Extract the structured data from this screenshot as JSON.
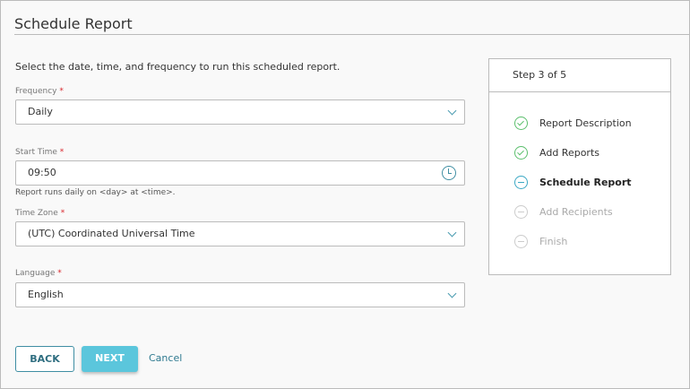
{
  "title": "Schedule Report",
  "intro": "Select the date, time, and frequency to run this scheduled report.",
  "required_mark": "*",
  "fields": {
    "frequency": {
      "label": "Frequency",
      "value": "Daily"
    },
    "start_time": {
      "label": "Start Time",
      "value": "09:50",
      "hint": "Report runs daily on <day> at <time>."
    },
    "time_zone": {
      "label": "Time Zone",
      "value": "(UTC) Coordinated Universal Time"
    },
    "language": {
      "label": "Language",
      "value": "English"
    }
  },
  "steps": {
    "header": "Step 3 of 5",
    "items": [
      {
        "label": "Report Description",
        "status": "complete"
      },
      {
        "label": "Add Reports",
        "status": "complete"
      },
      {
        "label": "Schedule Report",
        "status": "current"
      },
      {
        "label": "Add Recipients",
        "status": "pending"
      },
      {
        "label": "Finish",
        "status": "pending"
      }
    ]
  },
  "buttons": {
    "back": "BACK",
    "next": "NEXT",
    "cancel": "Cancel"
  }
}
